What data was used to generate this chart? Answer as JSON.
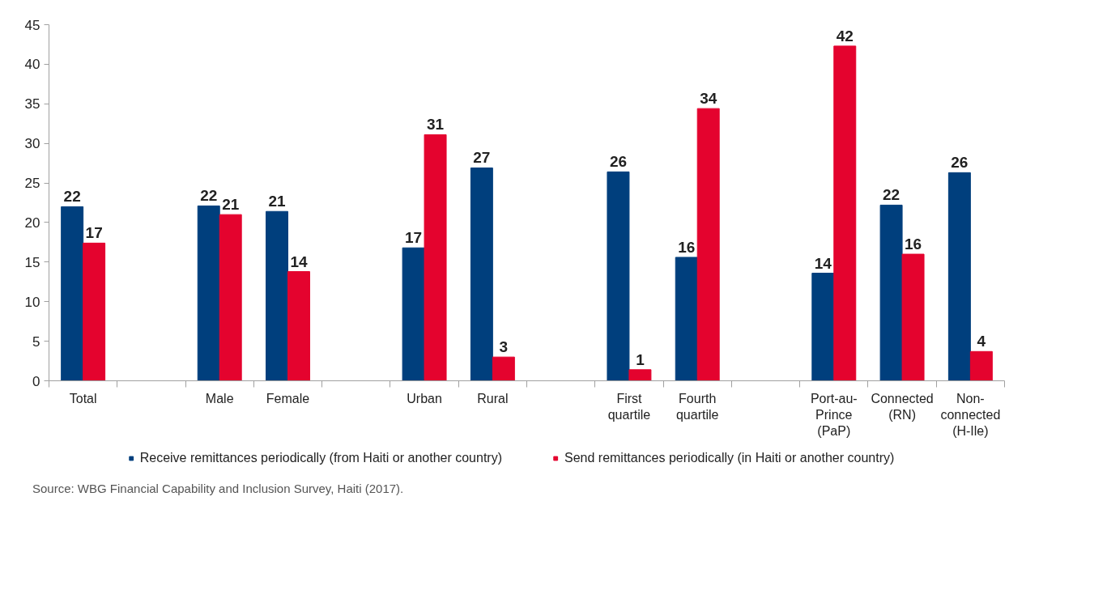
{
  "chart_data": {
    "type": "bar",
    "categories": [
      "Total",
      null,
      "Male",
      "Female",
      null,
      "Urban",
      "Rural",
      null,
      "First\nquartile",
      "Fourth\nquartile",
      null,
      "Port-au-\nPrince\n(PaP)",
      "Connected\n(RN)",
      "Non-\nconnected\n(H-Ile)"
    ],
    "series": [
      {
        "name": "Receive remittances periodically (from Haiti or another country)",
        "color": "#003f7d",
        "values": [
          22,
          null,
          22.1,
          21.4,
          null,
          16.8,
          26.9,
          null,
          26.4,
          15.6,
          null,
          13.6,
          22.2,
          26.3
        ],
        "value_labels": [
          "22",
          null,
          "22",
          "21",
          null,
          "17",
          "27",
          null,
          "26",
          "16",
          null,
          "14",
          "22",
          "26"
        ]
      },
      {
        "name": "Send remittances periodically (in Haiti or another country)",
        "color": "#e4032e",
        "values": [
          17.4,
          null,
          21,
          13.8,
          null,
          31.1,
          3.0,
          null,
          1.4,
          34.4,
          null,
          42.3,
          16.0,
          3.7
        ],
        "value_labels": [
          "17",
          null,
          "21",
          "14",
          null,
          "31",
          "3",
          null,
          "1",
          "34",
          null,
          "42",
          "16",
          "4"
        ]
      }
    ],
    "ylim": [
      0,
      45
    ],
    "yticks": [
      0,
      5,
      10,
      15,
      20,
      25,
      30,
      35,
      40,
      45
    ],
    "grid": false,
    "legend": "bottom",
    "annotations": [
      "Source: WBG Financial Capability and Inclusion Survey, Haiti (2017)."
    ]
  }
}
